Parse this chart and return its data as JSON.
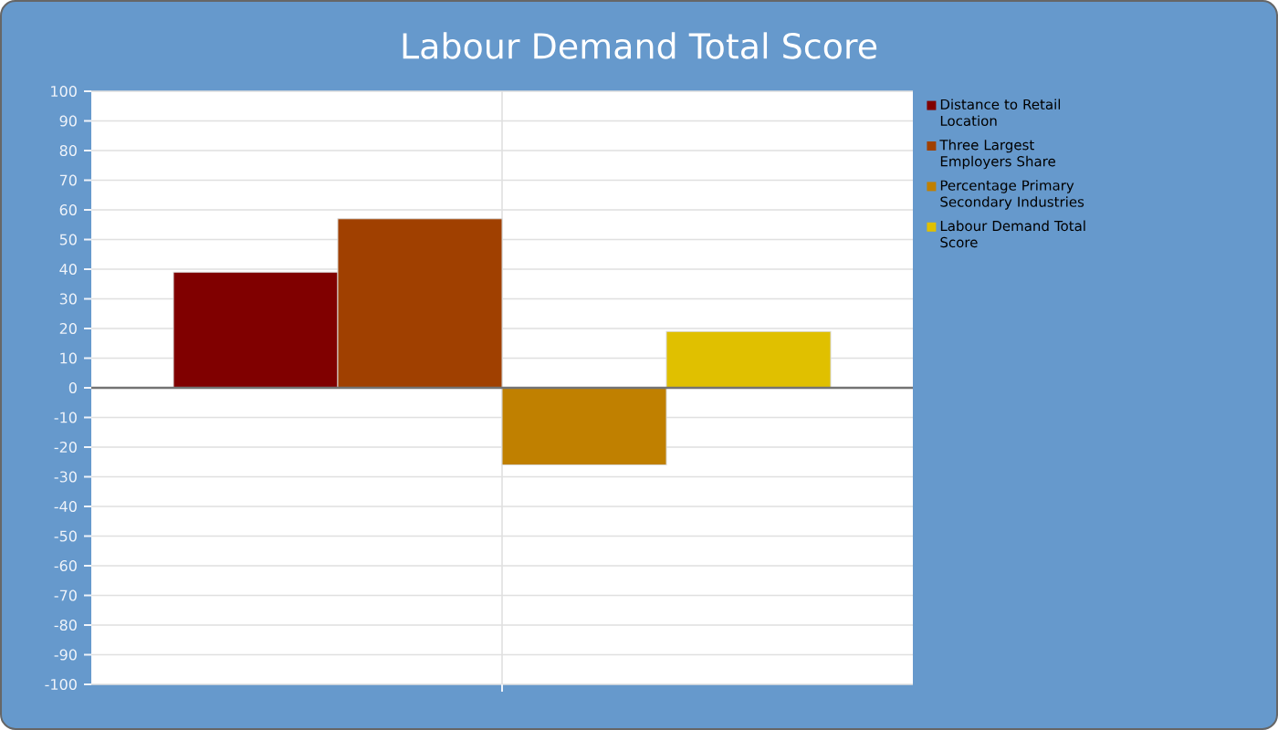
{
  "chart_data": {
    "type": "bar",
    "title": "Labour Demand Total Score",
    "categories": [
      null
    ],
    "series": [
      {
        "name": "Distance to Retail Location",
        "color": "#800000",
        "values": [
          39
        ]
      },
      {
        "name": "Three Largest Employers Share",
        "color": "#a04000",
        "values": [
          57
        ]
      },
      {
        "name": "Percentage Primary Secondary Industries",
        "color": "#c08000",
        "values": [
          -26
        ]
      },
      {
        "name": "Labour Demand Total Score",
        "color": "#e0c000",
        "values": [
          19
        ]
      }
    ],
    "ylim": [
      -100,
      100
    ],
    "yticks": [
      -100,
      -90,
      -80,
      -70,
      -60,
      -50,
      -40,
      -30,
      -20,
      -10,
      0,
      10,
      20,
      30,
      40,
      50,
      60,
      70,
      80,
      90,
      100
    ],
    "grid": true,
    "legend": "right"
  }
}
